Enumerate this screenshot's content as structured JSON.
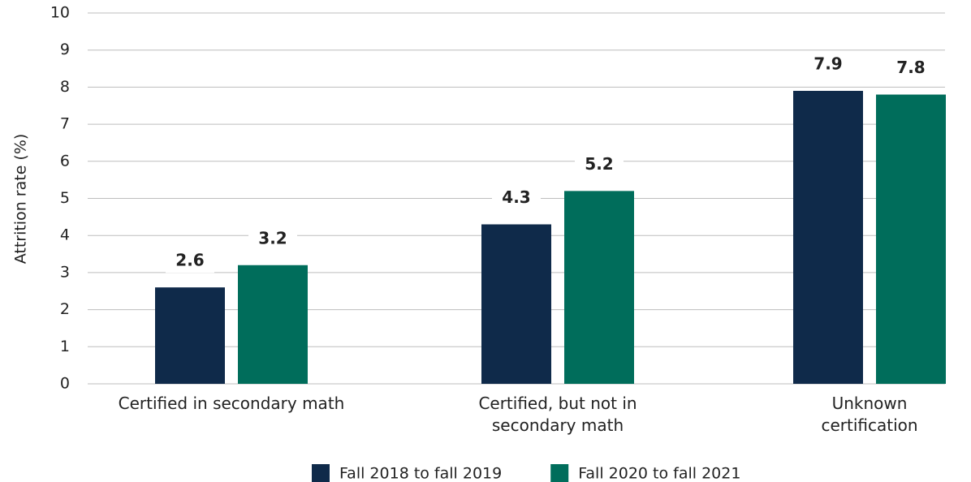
{
  "chart_data": {
    "type": "bar",
    "y_label": "Attrition rate (%)",
    "categories": [
      "Certified in secondary math",
      "Certified, but not in secondary math",
      "Unknown certification"
    ],
    "series": [
      {
        "name": "Fall 2018 to fall 2019",
        "color": "#0f2a4a",
        "values": [
          2.6,
          4.3,
          7.9
        ]
      },
      {
        "name": "Fall 2020 to fall 2021",
        "color": "#006d5b",
        "values": [
          3.2,
          5.2,
          7.8
        ]
      }
    ],
    "ylim": [
      0,
      10
    ],
    "yticks": [
      0,
      1,
      2,
      3,
      4,
      5,
      6,
      7,
      8,
      9,
      10
    ],
    "grid": true
  }
}
